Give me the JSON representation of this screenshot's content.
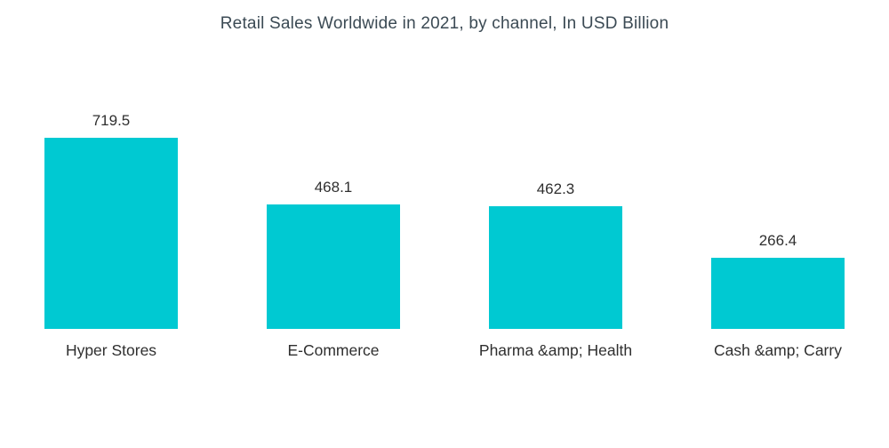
{
  "chart_data": {
    "type": "bar",
    "title": "Retail Sales Worldwide in 2021, by channel, In USD Billion",
    "categories": [
      "Hyper Stores",
      "E-Commerce",
      "Pharma &amp; Health",
      "Cash &amp; Carry"
    ],
    "values": [
      719.5,
      468.1,
      462.3,
      266.4
    ],
    "value_labels": [
      "719.5",
      "468.1",
      "462.3",
      "266.4"
    ],
    "unit": "USD Billion",
    "ylim": [
      0,
      800
    ],
    "grid": false,
    "legend_position": "none",
    "colors": {
      "bar": "#00c9d2",
      "title_text": "#3b4a54",
      "label_text": "#2f2f2f",
      "background": "#ffffff"
    }
  }
}
